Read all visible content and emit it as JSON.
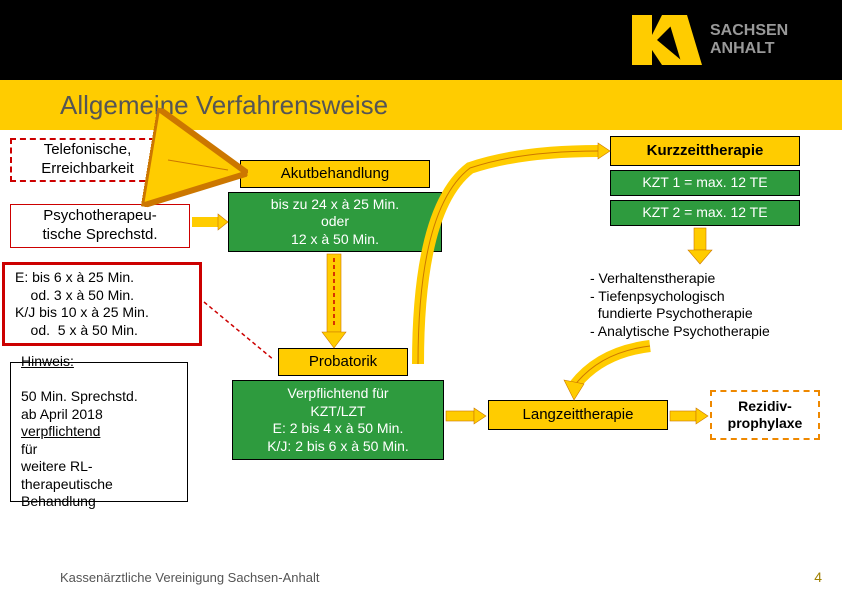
{
  "header": {
    "title": "Allgemeine Verfahrensweise"
  },
  "logo": {
    "line1": "SACHSEN",
    "line2": "ANHALT"
  },
  "boxes": {
    "telefon": "Telefonische,\nErreichbarkeit",
    "psycho": "Psychotherapeu-\ntische Sprechstd.",
    "details_e": "E: bis 6 x à 25 Min.\n    od. 3 x à 50 Min.\nK/J bis 10 x à 25 Min.\n    od.  5 x à 50 Min.",
    "hinweis": "Hinweis:\n50 Min. Sprechstd.\nab April 2018\nverpflichtend für\nweitere RL-\ntherapeutische\nBehandlung",
    "akut": "Akutbehandlung",
    "akut_detail": "bis zu 24 x à 25 Min.\noder\n12 x à 50 Min.",
    "probatorik": "Probatorik",
    "verpflichtend": "Verpflichtend für\nKZT/LZT\nE: 2 bis 4 x à 50 Min.\nK/J: 2 bis 6 x à 50 Min.",
    "kurzzeit": "Kurzzeittherapie",
    "kzt1": "KZT 1 = max. 12 TE",
    "kzt2": "KZT 2 = max. 12 TE",
    "therapien": "- Verhaltenstherapie\n- Tiefenpsychologisch\n  fundierte Psychotherapie\n- Analytische Psychotherapie",
    "langzeit": "Langzeittherapie",
    "rezidiv": "Rezidiv-\nprophylaxe"
  },
  "footer": "Kassenärztliche Vereinigung Sachsen-Anhalt",
  "page": "4",
  "colors": {
    "yellow": "#ffcc00",
    "green": "#2e9b3e",
    "red": "#cc0000",
    "orange": "#ee8800",
    "arrow": "#ffcc00",
    "arrow_border": "#cc7700"
  }
}
